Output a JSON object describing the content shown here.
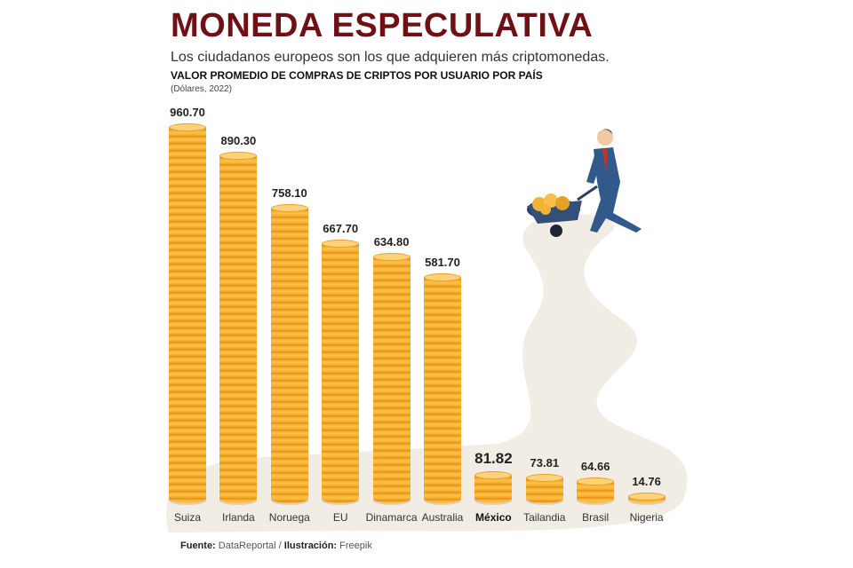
{
  "header": {
    "title": "MONEDA ESPECULATIVA",
    "subtitle": "Los ciudadanos europeos son los que adquieren más criptomonedas."
  },
  "chart_data": {
    "type": "bar",
    "title": "VALOR PROMEDIO DE COMPRAS DE CRIPTOS POR USUARIO POR PAÍS",
    "units": "(Dólares, 2022)",
    "categories": [
      "Suiza",
      "Irlanda",
      "Noruega",
      "EU",
      "Dinamarca",
      "Australia",
      "México",
      "Tailandia",
      "Brasil",
      "Nigeria"
    ],
    "values": [
      960.7,
      890.3,
      758.1,
      667.7,
      634.8,
      581.7,
      81.82,
      73.81,
      64.66,
      14.76
    ],
    "value_labels": [
      "960.70",
      "890.30",
      "758.10",
      "667.70",
      "634.80",
      "581.70",
      "81.82",
      "73.81",
      "64.66",
      "14.76"
    ],
    "highlight": "México",
    "xlabel": "",
    "ylabel": "",
    "ylim": [
      0,
      1000
    ],
    "colors": {
      "coin": "#f7b232",
      "title": "#6e1014"
    }
  },
  "footer": {
    "source_label": "Fuente:",
    "source": "DataReportal",
    "sep": " / ",
    "illustration_label": "Ilustración:",
    "illustration": "Freepik"
  }
}
